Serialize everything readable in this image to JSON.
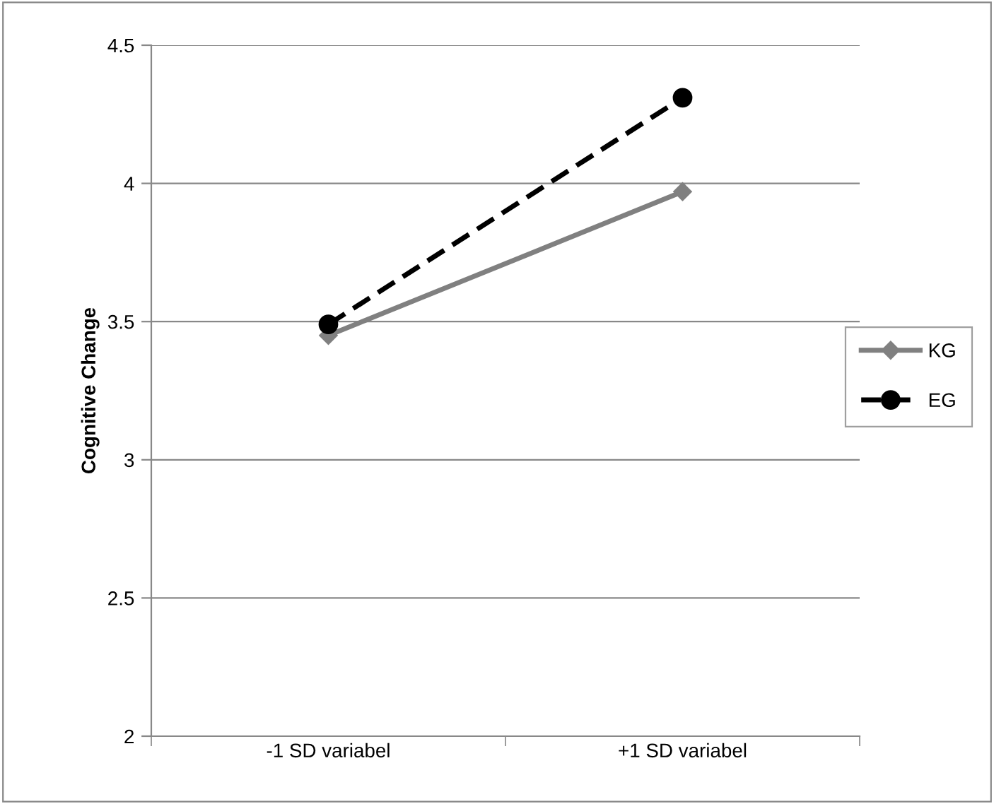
{
  "chart_data": {
    "type": "line",
    "ylabel": "Cognitive Change",
    "categories": [
      "-1 SD variabel",
      "+1 SD variabel"
    ],
    "series": [
      {
        "name": "KG",
        "color": "#808080",
        "values": [
          3.45,
          3.97
        ],
        "marker": "diamond",
        "line_style": "solid"
      },
      {
        "name": "EG",
        "color": "#000000",
        "values": [
          3.49,
          4.31
        ],
        "marker": "circle",
        "line_style": "dashed"
      }
    ],
    "ylim": [
      2,
      4.5
    ],
    "yticks": [
      2,
      2.5,
      3,
      3.5,
      4,
      4.5
    ],
    "grid": "y",
    "legend": "right"
  }
}
